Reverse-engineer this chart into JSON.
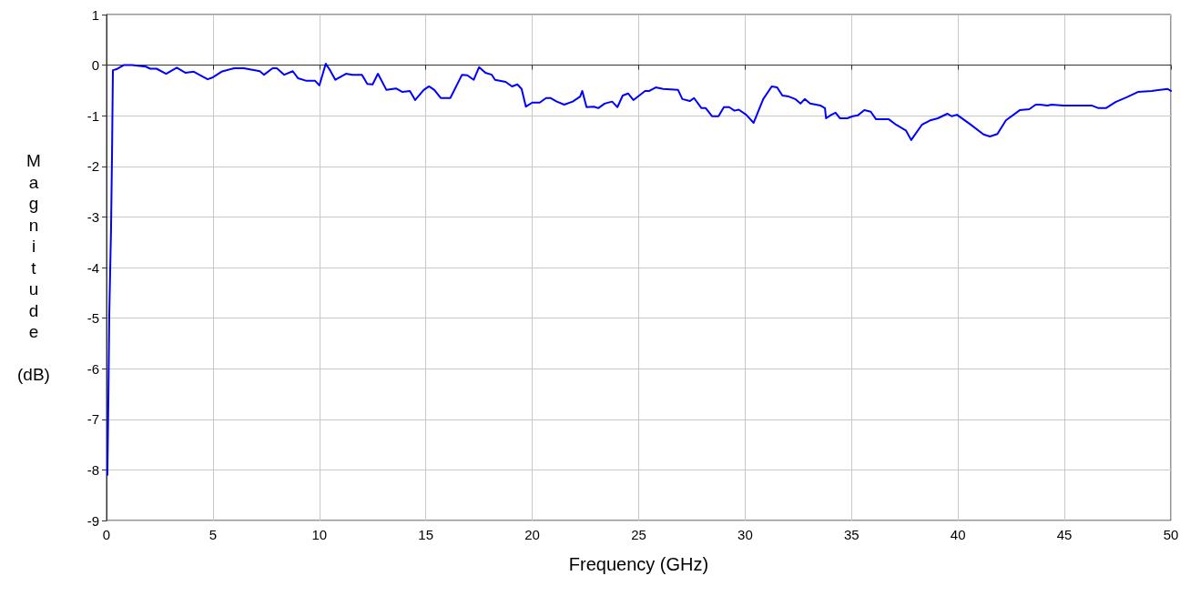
{
  "chart_data": {
    "type": "line",
    "xlabel": "Frequency (GHz)",
    "ylabel": "Magnitude (dB)",
    "xlim": [
      0,
      50
    ],
    "xticks": [
      0,
      5,
      10,
      15,
      20,
      25,
      30,
      35,
      40,
      45,
      50
    ],
    "ylim": [
      -9,
      1
    ],
    "yticks": [
      -9,
      -8,
      -7,
      -6,
      -5,
      -4,
      -3,
      -2,
      -1,
      0,
      1
    ],
    "grid": true,
    "marker": "none",
    "line_style": "solid",
    "series": [
      {
        "color": "#0000ff",
        "x": [
          0.04,
          0.09,
          0.13,
          0.21,
          0.26,
          0.3,
          0.47,
          0.8,
          1.2,
          1.85,
          2.05,
          2.35,
          2.8,
          3.3,
          3.7,
          4.1,
          4.75,
          5.0,
          5.4,
          6.0,
          6.45,
          7.2,
          7.4,
          7.8,
          8.0,
          8.35,
          8.75,
          9.0,
          9.4,
          9.8,
          10.0,
          10.3,
          10.5,
          10.75,
          11.25,
          11.55,
          12.0,
          12.25,
          12.5,
          12.75,
          13.15,
          13.6,
          13.9,
          14.25,
          14.5,
          14.9,
          15.15,
          15.4,
          15.7,
          16.15,
          16.7,
          16.95,
          17.25,
          17.5,
          17.8,
          18.1,
          18.25,
          18.75,
          19.05,
          19.3,
          19.5,
          19.7,
          20.0,
          20.35,
          20.65,
          20.85,
          21.15,
          21.5,
          21.9,
          22.25,
          22.35,
          22.55,
          22.9,
          23.1,
          23.4,
          23.75,
          24.0,
          24.25,
          24.5,
          24.75,
          25.3,
          25.5,
          25.8,
          26.15,
          26.85,
          27.05,
          27.4,
          27.6,
          27.95,
          28.15,
          28.45,
          28.75,
          29.0,
          29.25,
          29.5,
          29.7,
          30.05,
          30.4,
          30.85,
          31.25,
          31.5,
          31.75,
          32.05,
          32.35,
          32.6,
          32.8,
          33.05,
          33.55,
          33.75,
          33.8,
          34.05,
          34.25,
          34.45,
          34.8,
          35.05,
          35.3,
          35.6,
          35.9,
          36.15,
          36.75,
          37.1,
          37.55,
          37.8,
          38.3,
          38.7,
          39.05,
          39.5,
          39.7,
          39.95,
          40.55,
          41.2,
          41.5,
          41.85,
          42.25,
          42.9,
          43.35,
          43.65,
          43.85,
          44.2,
          44.4,
          44.95,
          46.3,
          46.6,
          46.95,
          47.4,
          47.9,
          48.45,
          49.1,
          49.85,
          50.0
        ],
        "values": [
          -8.1,
          -6.5,
          -4.9,
          -3.3,
          -1.7,
          -0.1,
          -0.08,
          0,
          0,
          -0.03,
          -0.07,
          -0.07,
          -0.17,
          -0.05,
          -0.15,
          -0.13,
          -0.28,
          -0.24,
          -0.13,
          -0.06,
          -0.06,
          -0.12,
          -0.19,
          -0.06,
          -0.06,
          -0.19,
          -0.12,
          -0.26,
          -0.31,
          -0.31,
          -0.4,
          0.03,
          -0.1,
          -0.29,
          -0.17,
          -0.19,
          -0.19,
          -0.37,
          -0.38,
          -0.17,
          -0.49,
          -0.46,
          -0.53,
          -0.51,
          -0.69,
          -0.49,
          -0.42,
          -0.49,
          -0.65,
          -0.65,
          -0.19,
          -0.2,
          -0.29,
          -0.04,
          -0.15,
          -0.19,
          -0.29,
          -0.33,
          -0.42,
          -0.38,
          -0.47,
          -0.82,
          -0.74,
          -0.74,
          -0.65,
          -0.65,
          -0.72,
          -0.78,
          -0.72,
          -0.62,
          -0.51,
          -0.83,
          -0.82,
          -0.85,
          -0.76,
          -0.72,
          -0.83,
          -0.6,
          -0.56,
          -0.69,
          -0.51,
          -0.51,
          -0.44,
          -0.47,
          -0.49,
          -0.67,
          -0.71,
          -0.65,
          -0.85,
          -0.85,
          -1.01,
          -1.01,
          -0.83,
          -0.83,
          -0.9,
          -0.88,
          -0.98,
          -1.14,
          -0.67,
          -0.42,
          -0.44,
          -0.6,
          -0.62,
          -0.67,
          -0.76,
          -0.67,
          -0.76,
          -0.8,
          -0.85,
          -1.05,
          -0.98,
          -0.94,
          -1.05,
          -1.05,
          -1.01,
          -0.99,
          -0.89,
          -0.92,
          -1.07,
          -1.07,
          -1.18,
          -1.29,
          -1.48,
          -1.18,
          -1.09,
          -1.05,
          -0.96,
          -1.01,
          -0.98,
          -1.16,
          -1.37,
          -1.41,
          -1.36,
          -1.09,
          -0.89,
          -0.87,
          -0.78,
          -0.78,
          -0.8,
          -0.78,
          -0.8,
          -0.8,
          -0.85,
          -0.85,
          -0.73,
          -0.64,
          -0.53,
          -0.51,
          -0.47,
          -0.51
        ]
      }
    ]
  }
}
